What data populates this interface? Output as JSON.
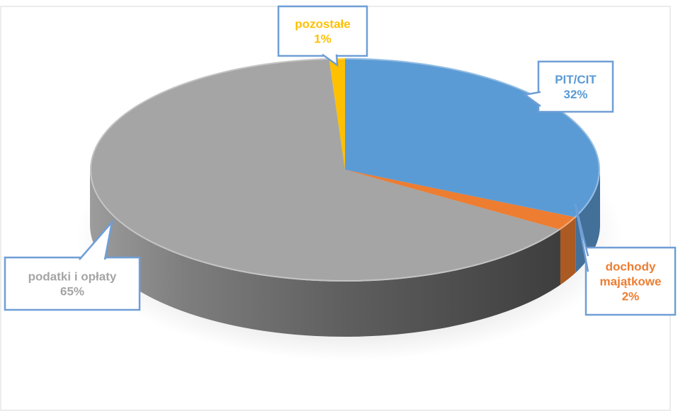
{
  "chart_data": {
    "type": "pie",
    "title": "",
    "series": [
      {
        "categories": [
          "PIT/CIT",
          "dochody majątkowe",
          "podatki i opłaty",
          "pozostałe"
        ],
        "values": [
          32,
          2,
          65,
          1
        ],
        "labels": [
          "32%",
          "2%",
          "65%",
          "1%"
        ],
        "colors": [
          "#5b9bd5",
          "#ed7d31",
          "#a5a5a5",
          "#ffc000"
        ]
      }
    ],
    "legend": "none",
    "label_style": "callout with category name and percentage",
    "style": "3d"
  }
}
